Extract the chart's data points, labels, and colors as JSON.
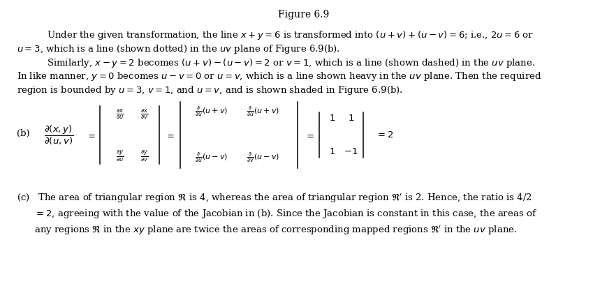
{
  "title": "Figure 6.9",
  "title_fontsize": 10,
  "body_fontsize": 9.5,
  "math_fontsize": 9.0,
  "background_color": "#ffffff",
  "text_color": "#000000",
  "fig_width": 8.69,
  "fig_height": 4.2,
  "p1l1": "Under the given transformation, the line $x + y = 6$ is transformed into $(u + v) + (u - v) = 6$; i.e., $2u = 6$ or",
  "p1l2": "$u = 3$, which is a line (shown dotted) in the $uv$ plane of Figure 6.9(b).",
  "p2l1": "Similarly, $x - y = 2$ becomes $(u + v) - (u - v) = 2$ or $v = 1$, which is a line (shown dashed) in the $uv$ plane.",
  "p3l1": "In like manner, $y = 0$ becomes $u - v = 0$ or $u = v$, which is a line shown heavy in the $uv$ plane. Then the required",
  "p3l2": "region is bounded by $u = 3$, $v = 1$, and $u = v$, and is shown shaded in Figure 6.9(b).",
  "label_b": "(b)",
  "pc1": "(c)   The area of triangular region $\\mathfrak{R}$ is 4, whereas the area of triangular region $\\mathfrak{R}'$ is 2. Hence, the ratio is 4/2",
  "pc2": "      $= 2$, agreeing with the value of the Jacobian in (b). Since the Jacobian is constant in this case, the areas of",
  "pc3": "      any regions $\\mathfrak{R}$ in the $xy$ plane are twice the areas of corresponding mapped regions $\\mathfrak{R}'$ in the $uv$ plane."
}
